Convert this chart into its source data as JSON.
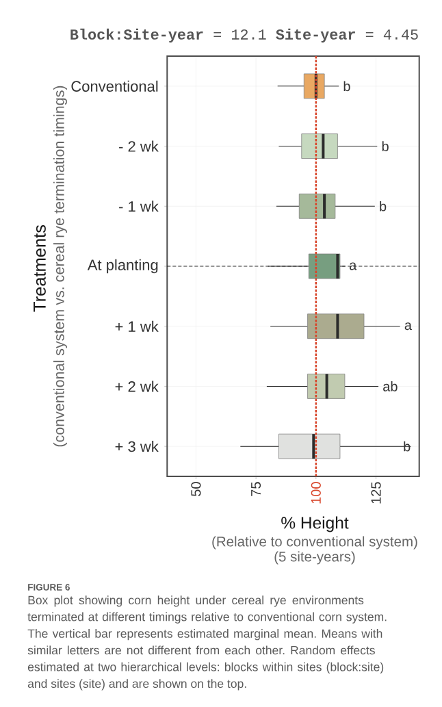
{
  "chart_data": {
    "type": "box",
    "orientation": "horizontal",
    "title": "**Block:Site-year** = 12.1 **Site-year** = 4.45",
    "xlabel": "% Height",
    "ylabel": "Treatments",
    "categories": [
      "Conventional",
      "- 2 wk",
      "- 1 wk",
      "At planting",
      "+ 1 wk",
      "+ 2 wk",
      "+ 3 wk"
    ],
    "boxes": [
      {
        "low": 84,
        "q1": 95,
        "median": 100,
        "q3": 103.5,
        "high": 109.5
      },
      {
        "low": 84.5,
        "q1": 94,
        "median": 103,
        "q3": 109,
        "high": 125.5
      },
      {
        "low": 83.5,
        "q1": 93,
        "median": 103.5,
        "q3": 108,
        "high": 124.5
      },
      {
        "low": 80,
        "q1": 97,
        "median": 109,
        "q3": 110,
        "high": 112
      },
      {
        "low": 81,
        "q1": 96.5,
        "median": 109,
        "q3": 120,
        "high": 135
      },
      {
        "low": 79.5,
        "q1": 96.5,
        "median": 104.5,
        "q3": 112,
        "high": 126
      },
      {
        "low": 68.5,
        "q1": 84.5,
        "median": 99,
        "q3": 110,
        "high": 139.5
      }
    ],
    "colors": [
      "#e9a862",
      "#c6d9bf",
      "#a5b99a",
      "#779e80",
      "#abab8f",
      "#c1cbb0",
      "#e0e1df"
    ],
    "xlim": [
      38,
      143
    ],
    "xticks": [
      50,
      75,
      100,
      125
    ],
    "grid": true,
    "ref_lines": [
      {
        "axis": "x",
        "value": 100,
        "color": "#d8452a",
        "line_style": "dotted"
      },
      {
        "axis": "y",
        "value": "At planting",
        "color": "#000000",
        "line_style": "dashed"
      }
    ],
    "annotations": [
      {
        "text": "b",
        "x": 109.5,
        "y": "Conventional"
      },
      {
        "text": "b",
        "x": 125.5,
        "y": "- 2 wk"
      },
      {
        "text": "b",
        "x": 124.5,
        "y": "- 1 wk"
      },
      {
        "text": "a",
        "x": 112,
        "y": "At planting"
      },
      {
        "text": "a",
        "x": 135,
        "y": "+ 1 wk"
      },
      {
        "text": "ab",
        "x": 126,
        "y": "+ 2 wk"
      },
      {
        "text": "b",
        "x": 139.5,
        "y": "+ 3 wk"
      },
      "(conventional system vs. cereal rye termination timings)",
      "(Relative to conventional system)",
      "(5 site-years)",
      "FIGURE 6",
      "Box plot showing corn height under cereal rye environments terminated at different timings relative to conventional corn system. The vertical bar represents estimated marginal mean. Means with similar letters are not different from each other. Random effects estimated at two hierarchical levels: blocks within sites (block:site) and sites (site) and are shown on the top."
    ]
  }
}
